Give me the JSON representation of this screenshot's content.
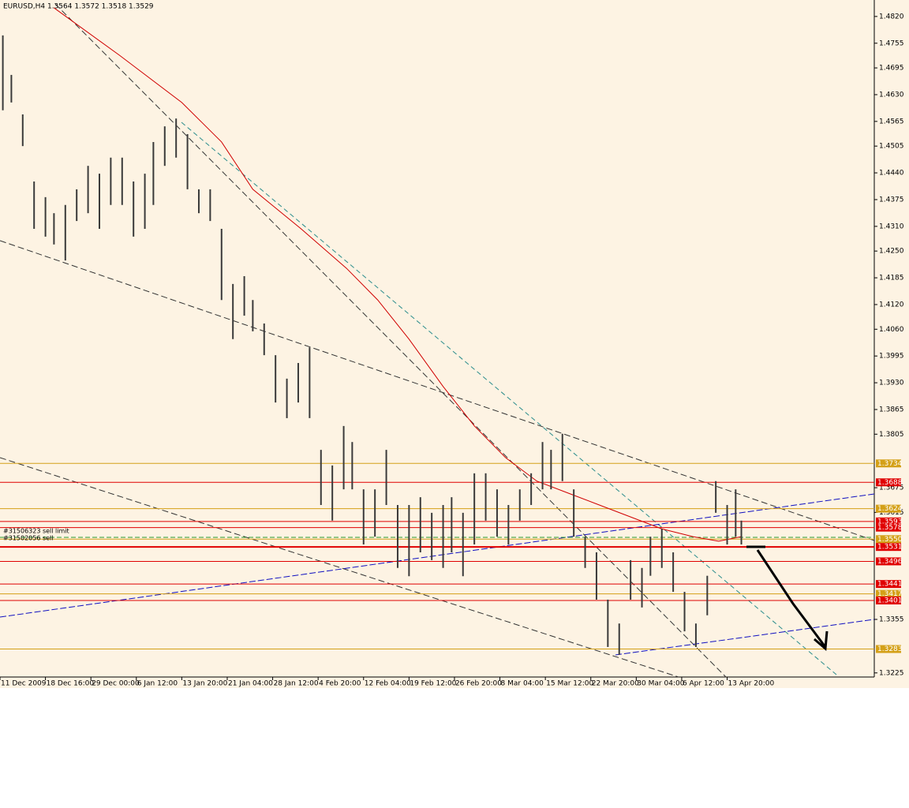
{
  "chart_data": {
    "type": "ohlc",
    "title": "EURUSD,H4  1.3564 1.3572 1.3518 1.3529",
    "color": "#3a3a3a",
    "x": [
      1,
      4,
      8,
      12,
      16,
      19,
      23,
      27,
      31,
      35,
      39,
      43,
      47,
      51,
      54,
      58,
      62,
      66,
      70,
      74,
      78,
      82,
      86,
      89,
      93,
      97,
      101,
      105,
      109,
      113,
      117,
      121,
      124,
      128,
      132,
      136,
      140,
      144,
      148,
      152,
      156,
      159,
      163,
      167,
      171,
      175,
      179,
      183,
      187,
      191,
      194,
      198,
      202,
      206,
      210,
      214,
      218,
      222,
      226,
      229,
      233,
      237,
      241,
      245,
      249,
      252,
      256,
      259,
      261
    ],
    "high": [
      1.4774,
      1.4678,
      1.4582,
      1.4419,
      1.4381,
      1.4342,
      1.4362,
      1.44,
      1.4457,
      1.4438,
      1.4477,
      1.4477,
      1.4419,
      1.4438,
      1.4515,
      1.4553,
      1.4572,
      1.4534,
      1.44,
      1.44,
      1.4304,
      1.417,
      1.4189,
      1.4131,
      1.4074,
      1.3997,
      1.394,
      1.3978,
      1.4016,
      1.3767,
      1.3729,
      1.3825,
      1.3786,
      1.3671,
      1.3671,
      1.3767,
      1.3633,
      1.3633,
      1.3652,
      1.3614,
      1.3633,
      1.3652,
      1.3614,
      1.371,
      1.371,
      1.3671,
      1.3633,
      1.3671,
      1.371,
      1.3786,
      1.3767,
      1.3806,
      1.3671,
      1.3556,
      1.3518,
      1.3403,
      1.3345,
      1.3499,
      1.348,
      1.3556,
      1.3575,
      1.3518,
      1.3422,
      1.3345,
      1.3461,
      1.3691,
      1.3633,
      1.3671,
      1.3595
    ],
    "low": [
      1.4592,
      1.4611,
      1.4505,
      1.4304,
      1.4285,
      1.4266,
      1.4227,
      1.4323,
      1.4342,
      1.4304,
      1.4362,
      1.4362,
      1.4285,
      1.4304,
      1.4362,
      1.4457,
      1.4477,
      1.44,
      1.4342,
      1.4323,
      1.4131,
      1.4036,
      1.4093,
      1.4055,
      1.3997,
      1.3882,
      1.3844,
      1.3882,
      1.3844,
      1.3633,
      1.3595,
      1.3671,
      1.3671,
      1.3537,
      1.3556,
      1.3633,
      1.348,
      1.346,
      1.3518,
      1.3499,
      1.348,
      1.3518,
      1.346,
      1.3537,
      1.3595,
      1.3556,
      1.3537,
      1.3595,
      1.3633,
      1.3671,
      1.3671,
      1.3691,
      1.3556,
      1.348,
      1.3403,
      1.3288,
      1.3269,
      1.3403,
      1.3384,
      1.3461,
      1.348,
      1.3422,
      1.3326,
      1.3288,
      1.3365,
      1.3614,
      1.3537,
      1.3556,
      1.3537
    ],
    "ma": {
      "color": "#d00000",
      "x": [
        19,
        42,
        64,
        78,
        89,
        106,
        122,
        133,
        144,
        156,
        167,
        178,
        189,
        200,
        211,
        222,
        233,
        244,
        253,
        261
      ],
      "values": [
        1.4841,
        1.4726,
        1.4611,
        1.4515,
        1.44,
        1.4304,
        1.4208,
        1.4131,
        1.4036,
        1.3921,
        1.3825,
        1.3748,
        1.3691,
        1.3662,
        1.3633,
        1.3604,
        1.3575,
        1.3556,
        1.3545,
        1.3556
      ]
    },
    "xlim": [
      0,
      307.8
    ],
    "xticks": [
      {
        "value": 0,
        "label": "11 Dec 2009"
      },
      {
        "value": 16,
        "label": "18 Dec 16:00"
      },
      {
        "value": 32,
        "label": "29 Dec 00:00"
      },
      {
        "value": 48,
        "label": "6 Jan 12:00"
      },
      {
        "value": 64,
        "label": "13 Jan 20:00"
      },
      {
        "value": 80,
        "label": "21 Jan 04:00"
      },
      {
        "value": 96,
        "label": "28 Jan 12:00"
      },
      {
        "value": 112,
        "label": "4 Feb 20:00"
      },
      {
        "value": 128,
        "label": "12 Feb 04:00"
      },
      {
        "value": 144,
        "label": "19 Feb 12:00"
      },
      {
        "value": 160,
        "label": "26 Feb 20:00"
      },
      {
        "value": 176,
        "label": "8 Mar 04:00"
      },
      {
        "value": 192,
        "label": "15 Mar 12:00"
      },
      {
        "value": 208,
        "label": "22 Mar 20:00"
      },
      {
        "value": 224,
        "label": "30 Mar 04:00"
      },
      {
        "value": 240,
        "label": "6 Apr 12:00"
      },
      {
        "value": 256,
        "label": "13 Apr 20:00"
      }
    ],
    "ylim": [
      1.3192,
      1.486
    ],
    "yticks": [
      {
        "value": 1.482,
        "label": "1.4820"
      },
      {
        "value": 1.4755,
        "label": "1.4755"
      },
      {
        "value": 1.4695,
        "label": "1.4695"
      },
      {
        "value": 1.463,
        "label": "1.4630"
      },
      {
        "value": 1.4565,
        "label": "1.4565"
      },
      {
        "value": 1.4505,
        "label": "1.4505"
      },
      {
        "value": 1.444,
        "label": "1.4440"
      },
      {
        "value": 1.4375,
        "label": "1.4375"
      },
      {
        "value": 1.431,
        "label": "1.4310"
      },
      {
        "value": 1.425,
        "label": "1.4250"
      },
      {
        "value": 1.4185,
        "label": "1.4185"
      },
      {
        "value": 1.412,
        "label": "1.4120"
      },
      {
        "value": 1.406,
        "label": "1.4060"
      },
      {
        "value": 1.3995,
        "label": "1.3995"
      },
      {
        "value": 1.393,
        "label": "1.3930"
      },
      {
        "value": 1.3865,
        "label": "1.3865"
      },
      {
        "value": 1.3805,
        "label": "1.3805"
      },
      {
        "value": 1.3675,
        "label": "1.3675"
      },
      {
        "value": 1.3615,
        "label": "1.3615"
      },
      {
        "value": 1.3355,
        "label": "1.3355"
      },
      {
        "value": 1.3225,
        "label": "1.3225"
      }
    ],
    "levels": [
      {
        "value": 1.3734,
        "label": "1.3734",
        "color": "#d4a017"
      },
      {
        "value": 1.3688,
        "label": "1.3688",
        "color": "#e00000"
      },
      {
        "value": 1.3624,
        "label": "1.3624",
        "color": "#d4a017"
      },
      {
        "value": 1.3593,
        "label": "1.3593",
        "color": "#e00000"
      },
      {
        "value": 1.3578,
        "label": "1.3578",
        "color": "#e00000"
      },
      {
        "value": 1.355,
        "label": "1.3550",
        "color": "#d4a017"
      },
      {
        "value": 1.3531,
        "label": "1.3531",
        "color": "#e00000"
      },
      {
        "value": 1.3496,
        "label": "1.3496",
        "color": "#e00000"
      },
      {
        "value": 1.3441,
        "label": "1.3441",
        "color": "#e00000"
      },
      {
        "value": 1.3417,
        "label": "1.3417",
        "color": "#d4a017"
      },
      {
        "value": 1.3401,
        "label": "1.3401",
        "color": "#e00000"
      },
      {
        "value": 1.3283,
        "label": "1.3283",
        "color": "#d4a017"
      }
    ],
    "annotations": [
      "#31506323 sell limit",
      "#31502056 sell"
    ]
  }
}
